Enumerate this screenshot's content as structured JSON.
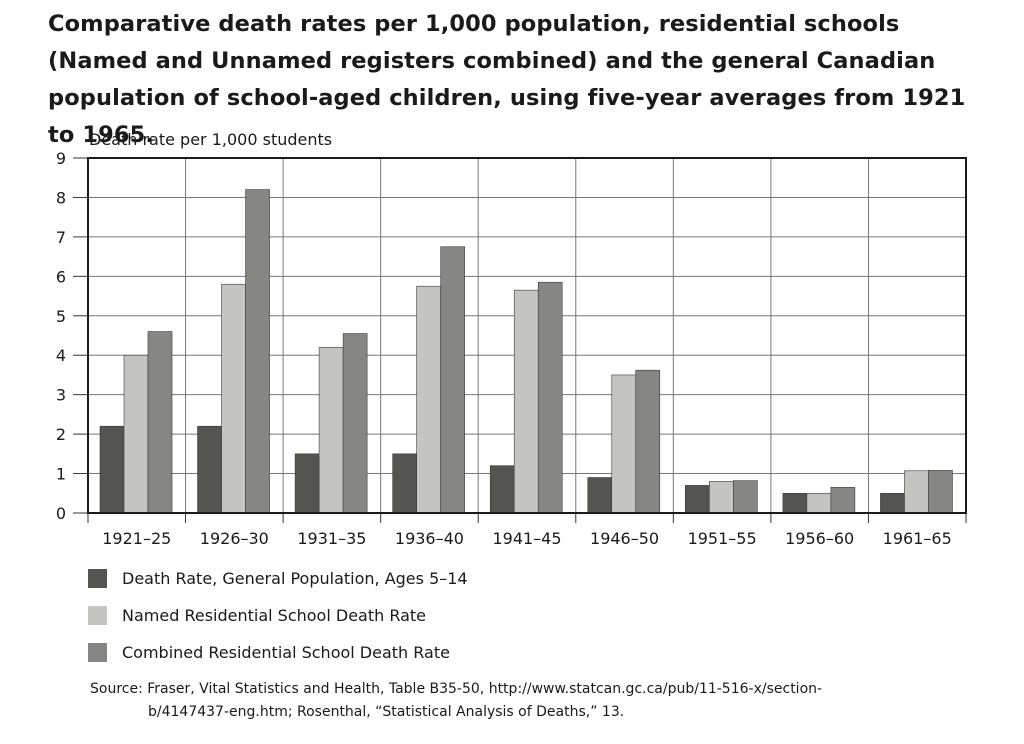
{
  "chart_data": {
    "type": "bar",
    "title": "Comparative death rates per 1,000 population, residential schools (Named and Unnamed registers combined) and the general Canadian population of school-aged children, using five-year averages from 1921 to 1965.",
    "ylabel": "Death rate per 1,000 students",
    "xlabel": "",
    "ylim": [
      0,
      9
    ],
    "yticks": [
      "0",
      "1",
      "2",
      "3",
      "4",
      "5",
      "6",
      "7",
      "8",
      "9"
    ],
    "grid": true,
    "legend_position": "bottom-left",
    "categories": [
      "1921–25",
      "1926–30",
      "1931–35",
      "1936–40",
      "1941–45",
      "1946–50",
      "1951–55",
      "1956–60",
      "1961–65"
    ],
    "series": [
      {
        "name": "Death Rate, General Population, Ages 5–14",
        "color": "#545450",
        "values": [
          2.2,
          2.2,
          1.5,
          1.5,
          1.2,
          0.9,
          0.7,
          0.5,
          0.5
        ]
      },
      {
        "name": "Named Residential School Death Rate",
        "color": "#c4c4c1",
        "values": [
          4.0,
          5.8,
          4.2,
          5.75,
          5.65,
          3.5,
          0.8,
          0.5,
          1.07
        ]
      },
      {
        "name": "Combined Residential School Death Rate",
        "color": "#868684",
        "values": [
          4.6,
          8.2,
          4.55,
          6.75,
          5.85,
          3.62,
          0.82,
          0.65,
          1.08
        ]
      }
    ]
  },
  "source": {
    "line1": "Source: Fraser, Vital Statistics and Health, Table B35-50, http://www.statcan.gc.ca/pub/11-516-x/section-",
    "line2": "b/4147437-eng.htm; Rosenthal, “Statistical Analysis of Deaths,” 13."
  }
}
